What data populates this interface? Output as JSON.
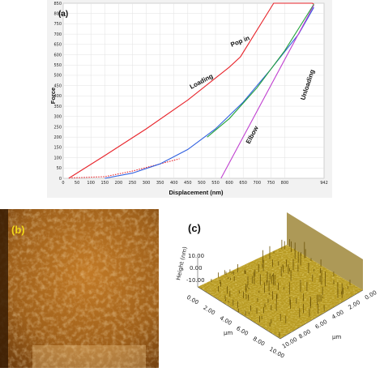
{
  "chart_data": [
    {
      "type": "line",
      "panel_label": "(a)",
      "xlabel": "Displacement (nm)",
      "ylabel": "Force",
      "xlim": [
        0,
        942
      ],
      "ylim": [
        0,
        850
      ],
      "x_ticks": [
        "0",
        "50",
        "100",
        "150",
        "200",
        "250",
        "300",
        "350",
        "400",
        "450",
        "500",
        "550",
        "600",
        "650",
        "700",
        "750",
        "800",
        "942"
      ],
      "y_ticks": [
        "0",
        "50",
        "100",
        "150",
        "200",
        "250",
        "300",
        "350",
        "400",
        "450",
        "500",
        "550",
        "600",
        "650",
        "700",
        "750",
        "800",
        "850"
      ],
      "grid": true,
      "annotations": [
        "Loading",
        "Pop in",
        "Unloading",
        "Elbow"
      ],
      "series": [
        {
          "color": "#e8242b",
          "x": [
            20,
            150,
            300,
            450,
            600,
            640,
            760,
            900,
            905
          ],
          "y": [
            0,
            110,
            240,
            380,
            540,
            590,
            850,
            850,
            845
          ]
        },
        {
          "color": "#e8242b",
          "style": "dashed",
          "x": [
            30,
            150,
            250,
            350,
            420
          ],
          "y": [
            2,
            8,
            35,
            70,
            95
          ]
        },
        {
          "color": "#3060e0",
          "x": [
            150,
            250,
            350,
            450,
            550,
            650,
            750,
            850,
            905
          ],
          "y": [
            0,
            25,
            70,
            140,
            240,
            370,
            530,
            700,
            830
          ]
        },
        {
          "color": "#22a23a",
          "x": [
            520,
            600,
            700,
            800,
            905
          ],
          "y": [
            200,
            290,
            440,
            620,
            845
          ]
        },
        {
          "color": "#c040d0",
          "x": [
            570,
            905
          ],
          "y": [
            0,
            840
          ]
        }
      ]
    },
    {
      "type": "heatmap",
      "panel_label": "(b)"
    },
    {
      "type": "heatmap",
      "panel_label": "(c)",
      "zlabel": "Height (nm)",
      "z_ticks": [
        "10.00",
        "0.00",
        "-10.00"
      ],
      "x_label": "μm",
      "y_label": "μm",
      "x_ticks": [
        "0.00",
        "2.00",
        "4.00",
        "6.00",
        "8.00",
        "10.00"
      ],
      "y_ticks": [
        "0.00",
        "2.00",
        "4.00",
        "6.00",
        "8.00",
        "10.00"
      ]
    }
  ],
  "colors": {
    "afm_dark": "#3a1d04",
    "afm_mid": "#a8651b",
    "afm_light": "#f0c88a",
    "surface": "#b89a22",
    "panel_b_label": "#f2d71a"
  }
}
